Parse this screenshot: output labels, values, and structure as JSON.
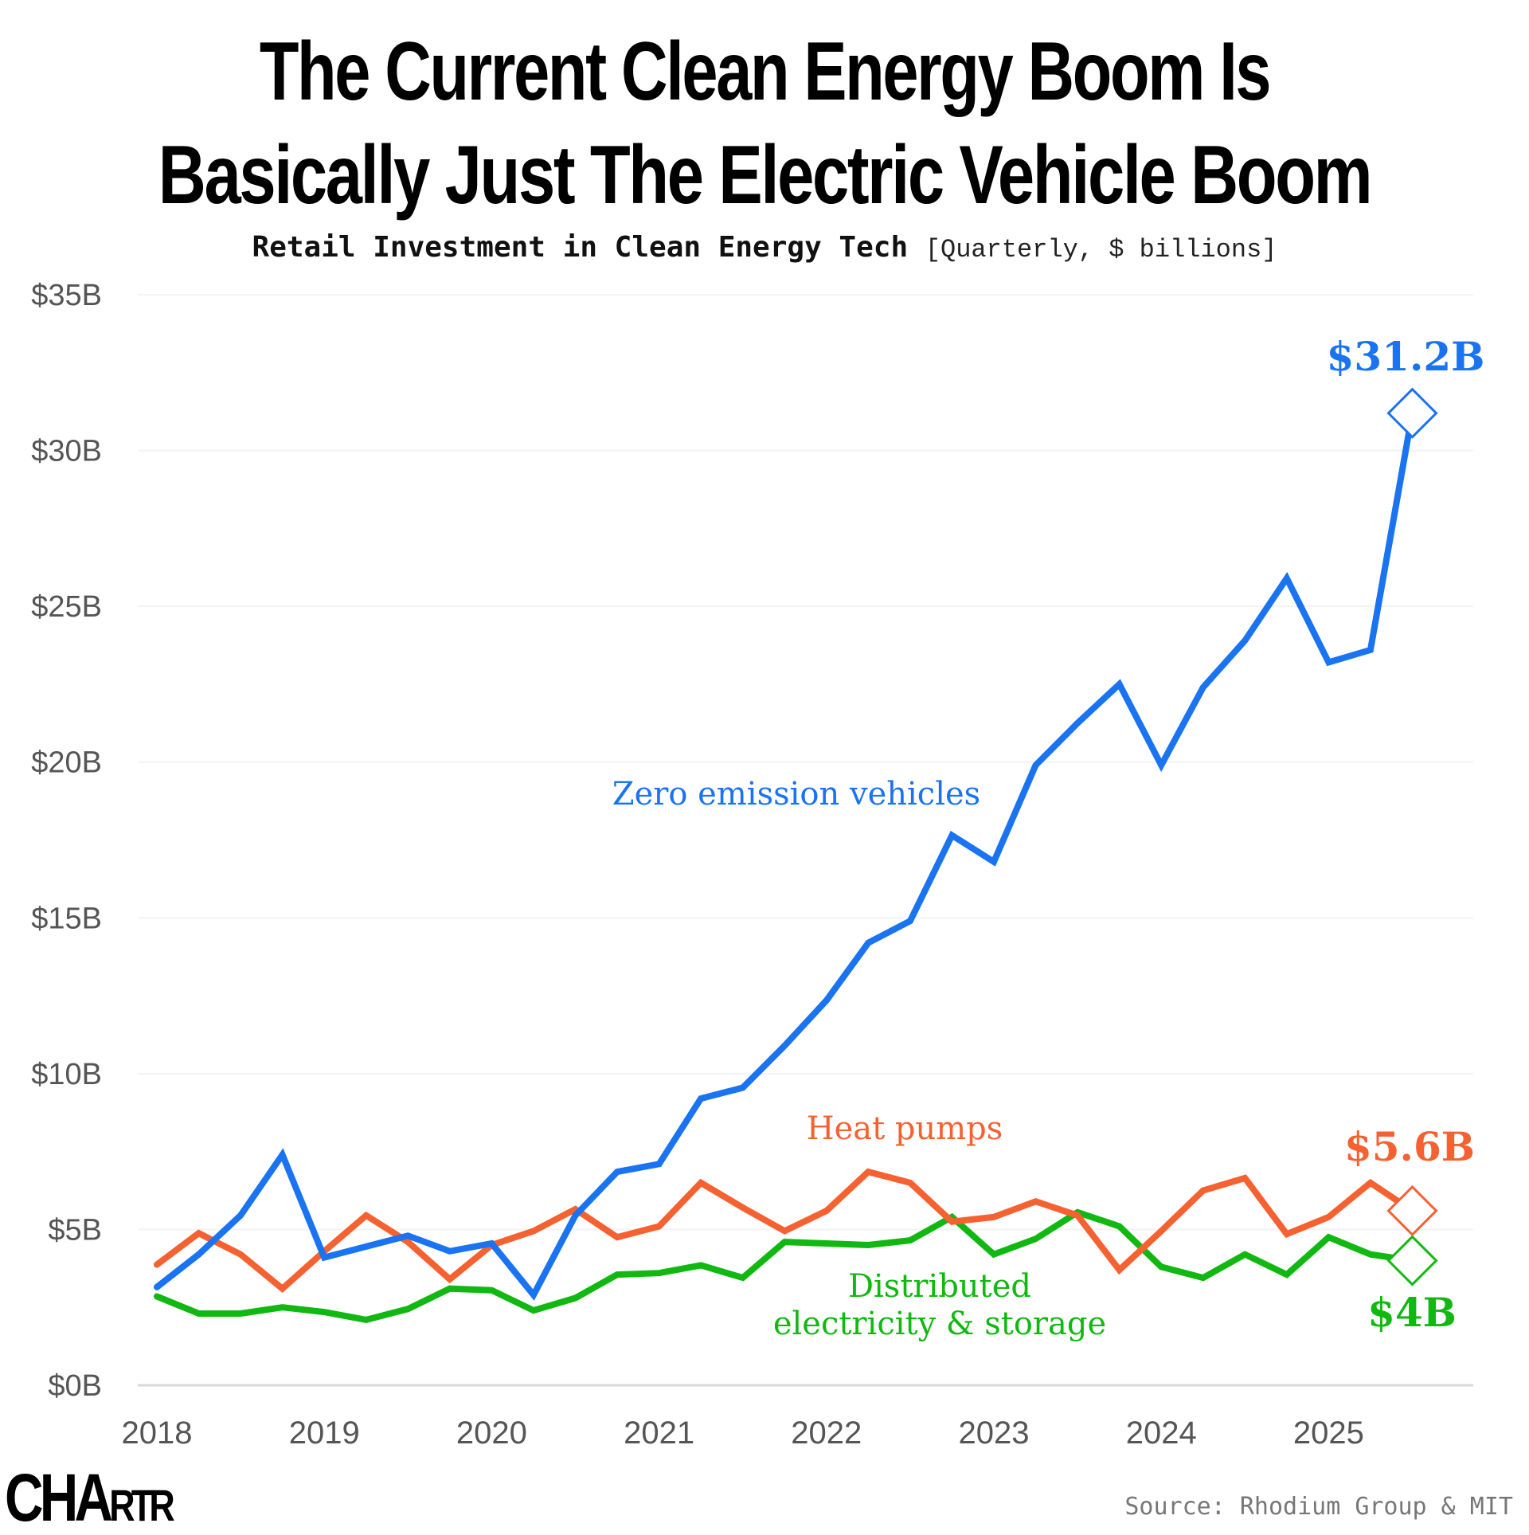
{
  "title": {
    "line1": "The Current Clean Energy Boom Is",
    "line2": "Basically Just The Electric Vehicle  Boom"
  },
  "subtitle": {
    "main": "Retail Investment in Clean Energy Tech",
    "note": "[Quarterly, $ billions]"
  },
  "footer": {
    "logo_big": "CHA",
    "logo_small": "RTR",
    "logo": "CHARTR",
    "source": "Source: Rhodium Group & MIT"
  },
  "chart_data": {
    "type": "line",
    "title": "Retail Investment in Clean Energy Tech",
    "subtitle": "[Quarterly, $ billions]",
    "xlabel": "",
    "ylabel": "",
    "x_ticks": [
      "2018",
      "2019",
      "2020",
      "2021",
      "2022",
      "2023",
      "2024",
      "2025"
    ],
    "y_ticks": [
      "$0B",
      "$5B",
      "$10B",
      "$15B",
      "$20B",
      "$25B",
      "$30B",
      "$35B"
    ],
    "y_tick_values": [
      0,
      5,
      10,
      15,
      20,
      25,
      30,
      35
    ],
    "ylim": [
      0,
      35
    ],
    "xlim": [
      2018.0,
      2025.5
    ],
    "grid": true,
    "legend": "inline labels",
    "x": [
      2018.0,
      2018.25,
      2018.5,
      2018.75,
      2019.0,
      2019.25,
      2019.5,
      2019.75,
      2020.0,
      2020.25,
      2020.5,
      2020.75,
      2021.0,
      2021.25,
      2021.5,
      2021.75,
      2022.0,
      2022.25,
      2022.5,
      2022.75,
      2023.0,
      2023.25,
      2023.5,
      2023.75,
      2024.0,
      2024.25,
      2024.5,
      2024.75,
      2025.0,
      2025.25,
      2025.5
    ],
    "series": [
      {
        "name": "Zero emission vehicles",
        "color": "#1a73f0",
        "end_label": "$31.2B",
        "values": [
          3.15,
          4.2,
          5.45,
          7.4,
          4.1,
          4.45,
          4.8,
          4.3,
          4.55,
          2.9,
          5.45,
          6.85,
          7.1,
          9.2,
          9.55,
          10.9,
          12.35,
          14.2,
          14.9,
          17.65,
          16.8,
          19.9,
          21.25,
          22.5,
          19.9,
          22.4,
          23.9,
          25.9,
          23.2,
          23.6,
          31.2
        ]
      },
      {
        "name": "Heat pumps",
        "color": "#f56130",
        "end_label": "$5.6B",
        "values": [
          3.87,
          4.88,
          4.2,
          3.1,
          4.3,
          5.45,
          4.6,
          3.4,
          4.5,
          4.95,
          5.65,
          4.75,
          5.1,
          6.5,
          5.7,
          4.95,
          5.6,
          6.85,
          6.5,
          5.25,
          5.4,
          5.9,
          5.45,
          3.7,
          4.95,
          6.25,
          6.65,
          4.85,
          5.4,
          6.5,
          5.6
        ]
      },
      {
        "name": "Distributed electricity & storage",
        "name_lines": [
          "Distributed",
          "electricity & storage"
        ],
        "color": "#12b812",
        "end_label": "$4B",
        "values": [
          2.85,
          2.3,
          2.3,
          2.5,
          2.35,
          2.1,
          2.45,
          3.1,
          3.05,
          2.4,
          2.8,
          3.55,
          3.6,
          3.85,
          3.45,
          4.6,
          4.55,
          4.5,
          4.65,
          5.4,
          4.2,
          4.7,
          5.55,
          5.1,
          3.8,
          3.45,
          4.2,
          3.55,
          4.75,
          4.2,
          4.0
        ]
      }
    ]
  }
}
